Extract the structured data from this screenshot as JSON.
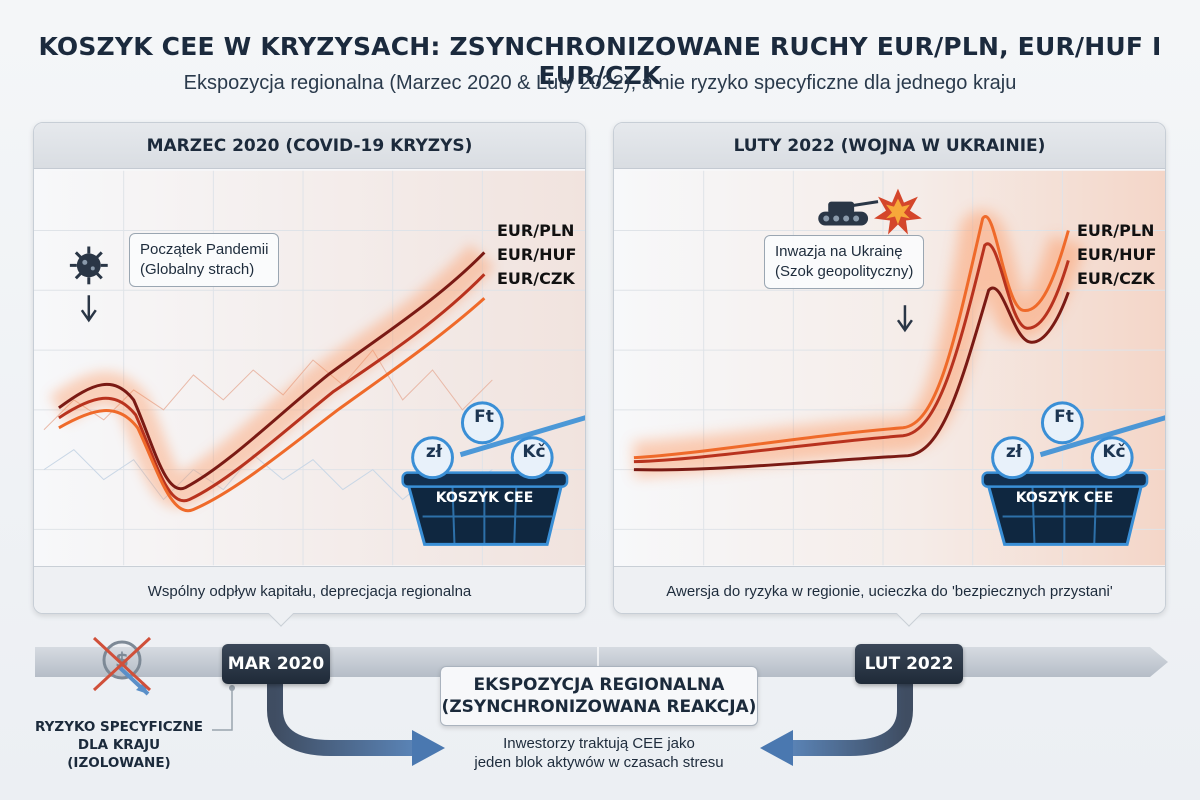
{
  "header": {
    "title": "KOSZYK CEE W KRYZYSACH: ZSYNCHRONIZOWANE RUCHY EUR/PLN, EUR/HUF I EUR/CZK",
    "subtitle": "Ekspozycja regionalna (Marzec 2020 & Luty 2022), a nie ryzyko specyficzne dla jednego kraju"
  },
  "panels": {
    "left": {
      "title": "MARZEC 2020 (COVID-19 KRYZYS)",
      "callout_line1": "Początek Pandemii",
      "callout_line2": "(Globalny strach)",
      "icon": "virus-icon",
      "footer": "Wspólny odpływ kapitału, deprecjacja regionalna",
      "basket_label": "KOSZYK CEE",
      "currencies": [
        "zł",
        "Ft",
        "Kč"
      ]
    },
    "right": {
      "title": "LUTY 2022 (WOJNA W UKRAINIE)",
      "callout_line1": "Inwazja na Ukrainę",
      "callout_line2": "(Szok geopolityczny)",
      "icons": [
        "tank-icon",
        "explosion-icon"
      ],
      "footer": "Awersja do ryzyka w regionie, ucieczka do 'bezpiecznych przystani'",
      "basket_label": "KOSZYK CEE",
      "currencies": [
        "zł",
        "Ft",
        "Kč"
      ]
    }
  },
  "series_labels": [
    "EUR/PLN",
    "EUR/HUF",
    "EUR/CZK"
  ],
  "timeline": {
    "date_left": "MAR 2020",
    "date_right": "LUT 2022",
    "center_title_line1": "EKSPOZYCJA REGIONALNA",
    "center_title_line2": "(ZSYNCHRONIZOWANA REAKCJA)",
    "center_note_line1": "Inwestorzy traktują CEE jako",
    "center_note_line2": "jeden blok aktywów w czasach stresu",
    "specific_risk_line1": "RYZYKO SPECYFICZNE",
    "specific_risk_line2": "DLA KRAJU",
    "specific_risk_line3": "(IZOLOWANE)"
  },
  "colors": {
    "line_dark": "#7a1a14",
    "line_mid": "#b8321e",
    "line_bright": "#ef6a2a",
    "glow": "#ff8a4c",
    "basket_blue": "#3a8fd6",
    "navy": "#1f2a38"
  }
}
